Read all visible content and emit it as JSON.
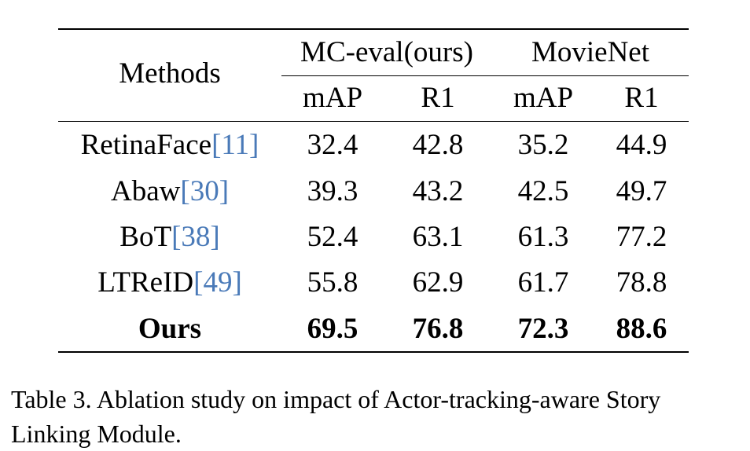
{
  "table": {
    "header": {
      "methods": "Methods",
      "group1": "MC-eval(ours)",
      "group2": "MovieNet",
      "sub": [
        "mAP",
        "R1",
        "mAP",
        "R1"
      ]
    },
    "rows": [
      {
        "method": "RetinaFace",
        "cite": "11",
        "values": [
          "32.4",
          "42.8",
          "35.2",
          "44.9"
        ],
        "bold": false
      },
      {
        "method": "Abaw",
        "cite": "30",
        "values": [
          "39.3",
          "43.2",
          "42.5",
          "49.7"
        ],
        "bold": false
      },
      {
        "method": "BoT",
        "cite": "38",
        "values": [
          "52.4",
          "63.1",
          "61.3",
          "77.2"
        ],
        "bold": false
      },
      {
        "method": "LTReID",
        "cite": "49",
        "values": [
          "55.8",
          "62.9",
          "61.7",
          "78.8"
        ],
        "bold": false
      },
      {
        "method": "Ours",
        "cite": "",
        "values": [
          "69.5",
          "76.8",
          "72.3",
          "88.6"
        ],
        "bold": true
      }
    ]
  },
  "caption": {
    "label": "Table 3.",
    "text": "Ablation study on impact of Actor-tracking-aware Story Linking Module."
  },
  "colors": {
    "citation": "#4a7ab8"
  }
}
